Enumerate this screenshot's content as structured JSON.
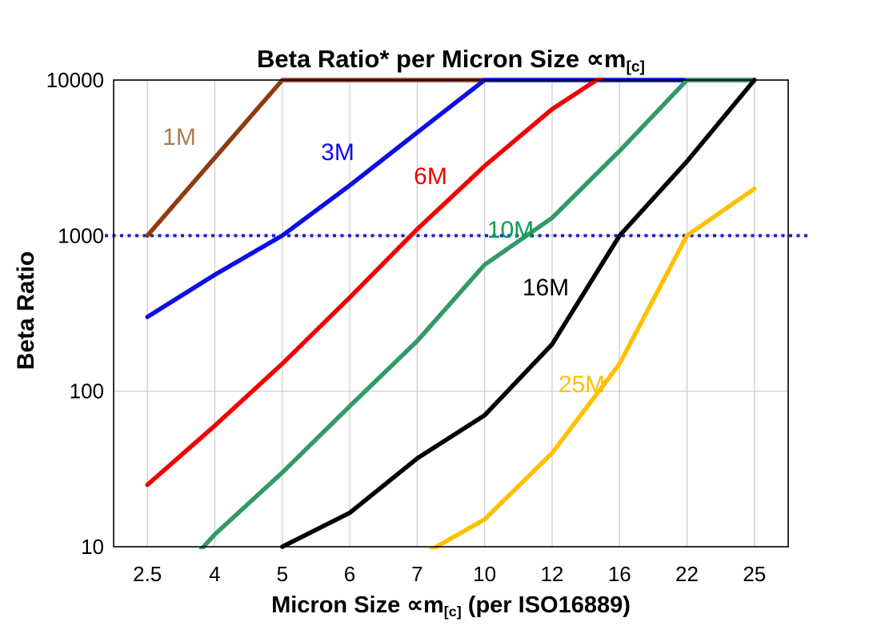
{
  "chart_data": {
    "type": "line",
    "title": {
      "pre": "Beta Ratio* per Micron Size ∝m",
      "sub": "[c]"
    },
    "xlabel": {
      "pre": "Micron Size ∝m",
      "sub": "[c]",
      "post": " (per ISO16889)"
    },
    "ylabel": "Beta Ratio",
    "x_categories": [
      "2.5",
      "4",
      "5",
      "6",
      "7",
      "10",
      "12",
      "16",
      "22",
      "25"
    ],
    "y_ticks": [
      "10",
      "100",
      "1000",
      "10000"
    ],
    "y_scale": "log",
    "ylim": [
      10,
      10000
    ],
    "grid": {
      "vertical": true,
      "horizontal_values": [
        100,
        1000,
        10000
      ],
      "color": "#c9c9c9"
    },
    "reference_line": {
      "value": 1000,
      "color": "#2222cc",
      "style": "dotted"
    },
    "series": [
      {
        "name": "1M",
        "color": "#8f3a10",
        "label_color": "#a97c4e",
        "values": [
          1000,
          3162,
          10000,
          10000,
          10000,
          10000,
          null,
          null,
          null,
          null
        ]
      },
      {
        "name": "3M",
        "color": "#0d0de8",
        "label_color": "#0d0de8",
        "values": [
          300,
          560,
          1000,
          2100,
          4600,
          10000,
          10000,
          10000,
          10000,
          10000
        ]
      },
      {
        "name": "6M",
        "color": "#f40000",
        "label_color": "#f40000",
        "values": [
          25,
          60,
          150,
          400,
          1100,
          2800,
          6500,
          12500,
          null,
          null
        ]
      },
      {
        "name": "10M",
        "color": "#339966",
        "label_color": "#00a14b",
        "values": [
          4,
          12,
          30,
          80,
          210,
          650,
          1300,
          3500,
          10000,
          10000
        ]
      },
      {
        "name": "16M",
        "color": "#000000",
        "label_color": "#000000",
        "values": [
          null,
          null,
          10,
          16.5,
          37,
          70,
          200,
          1000,
          3000,
          10000
        ]
      },
      {
        "name": "25M",
        "color": "#ffc000",
        "label_color": "#ffc000",
        "values": [
          null,
          null,
          null,
          null,
          8.5,
          15,
          40,
          150,
          1000,
          2000
        ]
      }
    ]
  }
}
